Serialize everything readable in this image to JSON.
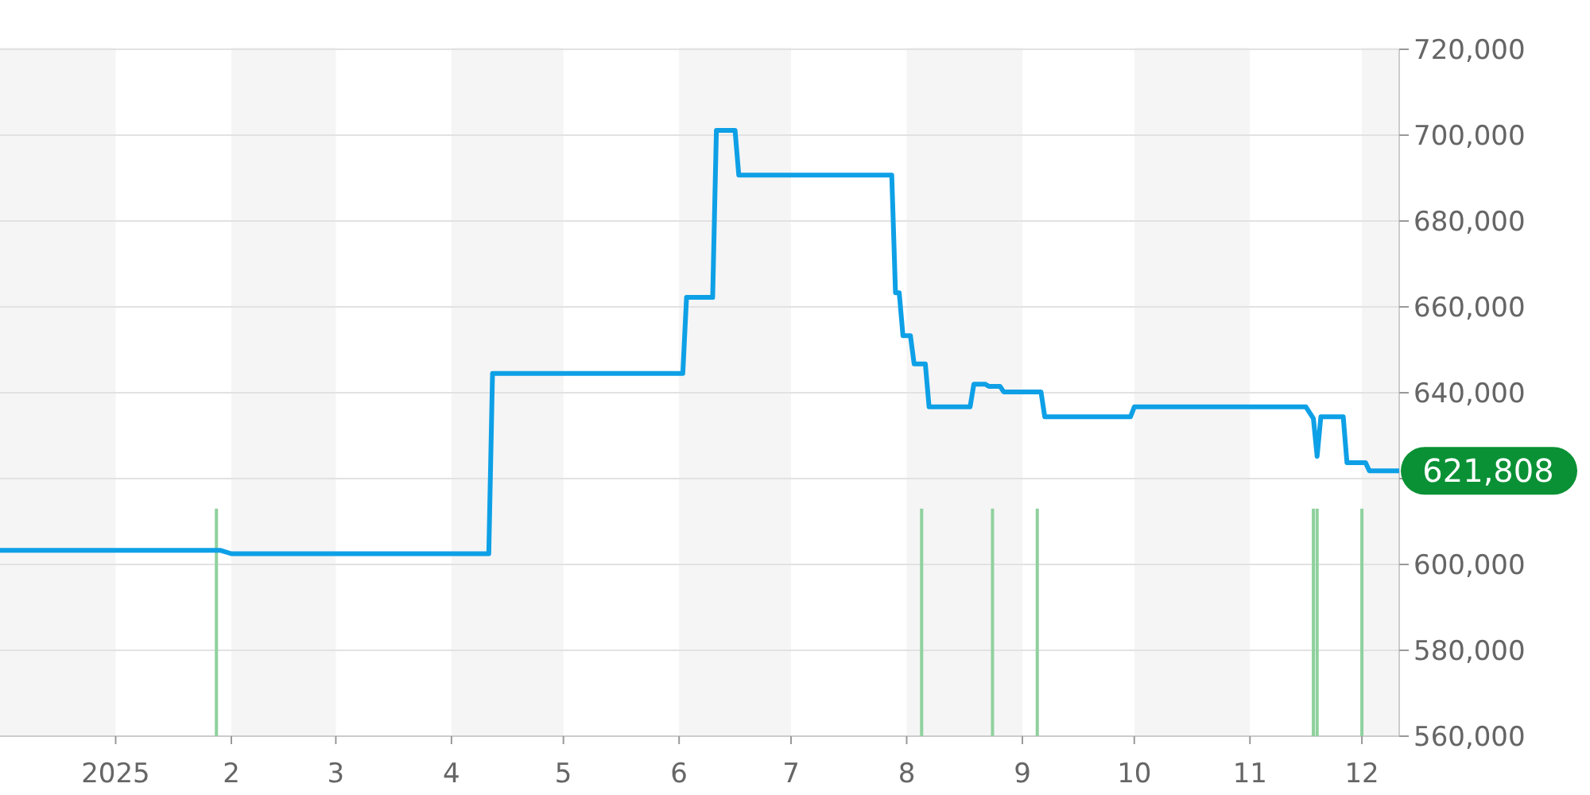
{
  "chart_data": {
    "type": "line",
    "xlim": [
      "2024-12-01",
      "2025-12-11"
    ],
    "xticks": [
      {
        "value": "2025-01-01",
        "label": "2025"
      },
      {
        "value": "2025-02-01",
        "label": "2"
      },
      {
        "value": "2025-03-01",
        "label": "3"
      },
      {
        "value": "2025-04-01",
        "label": "4"
      },
      {
        "value": "2025-05-01",
        "label": "5"
      },
      {
        "value": "2025-06-01",
        "label": "6"
      },
      {
        "value": "2025-07-01",
        "label": "7"
      },
      {
        "value": "2025-08-01",
        "label": "8"
      },
      {
        "value": "2025-09-01",
        "label": "9"
      },
      {
        "value": "2025-10-01",
        "label": "10"
      },
      {
        "value": "2025-11-01",
        "label": "11"
      },
      {
        "value": "2025-12-01",
        "label": "12"
      }
    ],
    "ylim": [
      560000,
      720000
    ],
    "yticks": [
      {
        "value": 560000,
        "label": "560,000"
      },
      {
        "value": 580000,
        "label": "580,000"
      },
      {
        "value": 600000,
        "label": "600,000"
      },
      {
        "value": 620000,
        "label": null
      },
      {
        "value": 640000,
        "label": "640,000"
      },
      {
        "value": 660000,
        "label": "660,000"
      },
      {
        "value": 680000,
        "label": "680,000"
      },
      {
        "value": 700000,
        "label": "700,000"
      },
      {
        "value": 720000,
        "label": "720,000"
      }
    ],
    "grid": "y",
    "bands": [
      {
        "axis": "x",
        "from": "2024-12-01",
        "to": "2025-01-01",
        "color": "#f5f5f5"
      },
      {
        "axis": "x",
        "from": "2025-02-01",
        "to": "2025-03-01",
        "color": "#f5f5f5"
      },
      {
        "axis": "x",
        "from": "2025-04-01",
        "to": "2025-05-01",
        "color": "#f5f5f5"
      },
      {
        "axis": "x",
        "from": "2025-06-01",
        "to": "2025-07-01",
        "color": "#f5f5f5"
      },
      {
        "axis": "x",
        "from": "2025-08-01",
        "to": "2025-09-01",
        "color": "#f5f5f5"
      },
      {
        "axis": "x",
        "from": "2025-10-01",
        "to": "2025-11-01",
        "color": "#f5f5f5"
      },
      {
        "axis": "x",
        "from": "2025-12-01",
        "to": "2025-12-11",
        "color": "#f5f5f5"
      }
    ],
    "series": [
      {
        "type": "bar",
        "color": "#8fd19e",
        "x": [
          "2025-01-28",
          "2025-08-05",
          "2025-08-24",
          "2025-09-05",
          "2025-11-18",
          "2025-11-19",
          "2025-12-01"
        ],
        "values": [
          613000,
          613000,
          613000,
          613000,
          613000,
          613000,
          613000
        ]
      },
      {
        "color": "#0ea0e6",
        "x": [
          "2024-12-01",
          "2025-01-29",
          "2025-02-01",
          "2025-04-11",
          "2025-04-12",
          "2025-06-02",
          "2025-06-03",
          "2025-06-10",
          "2025-06-11",
          "2025-06-16",
          "2025-06-17",
          "2025-07-28",
          "2025-07-29",
          "2025-07-30",
          "2025-07-31",
          "2025-08-02",
          "2025-08-03",
          "2025-08-06",
          "2025-08-07",
          "2025-08-18",
          "2025-08-19",
          "2025-08-22",
          "2025-08-23",
          "2025-08-26",
          "2025-08-27",
          "2025-09-06",
          "2025-09-07",
          "2025-09-30",
          "2025-10-01",
          "2025-11-16",
          "2025-11-18",
          "2025-11-19",
          "2025-11-20",
          "2025-11-26",
          "2025-11-27",
          "2025-12-02",
          "2025-12-03",
          "2025-12-11"
        ],
        "values": [
          603300,
          603300,
          602500,
          602500,
          644500,
          644500,
          662200,
          662200,
          701100,
          701100,
          690700,
          690700,
          663300,
          663300,
          653300,
          653300,
          646700,
          646700,
          636700,
          636700,
          642000,
          642000,
          641500,
          641500,
          640200,
          640200,
          634400,
          634400,
          636700,
          636700,
          634000,
          625200,
          634400,
          634400,
          623700,
          623700,
          621808,
          621808
        ]
      }
    ],
    "annotations": [
      {
        "text": "621,808",
        "x": "2025-12-11",
        "y": 621808
      }
    ]
  }
}
